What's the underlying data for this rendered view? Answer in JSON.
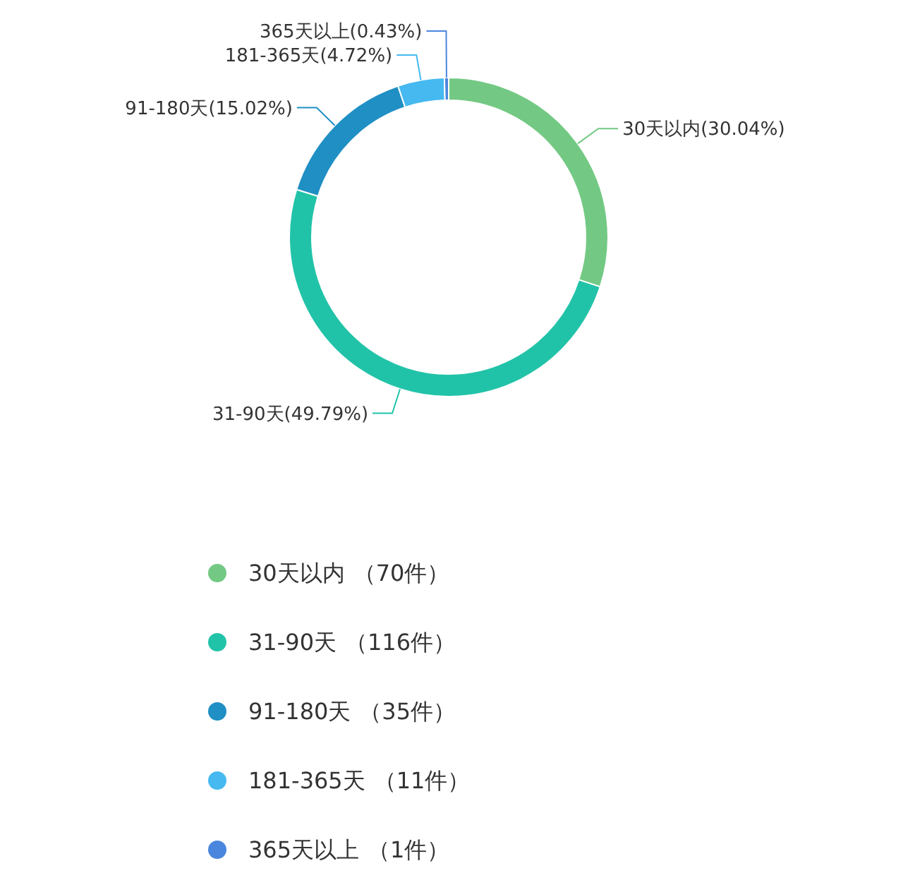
{
  "chart_data": {
    "type": "donut",
    "categories": [
      "30天以内",
      "31-90天",
      "91-180天",
      "181-365天",
      "365天以上"
    ],
    "values": [
      30.04,
      49.79,
      15.02,
      4.72,
      0.43
    ],
    "colors": [
      "#73c983",
      "#21c3a8",
      "#1f8fc4",
      "#45b9f0",
      "#4a86de"
    ],
    "value_labels": [
      "(30.04%)",
      "(49.79%)",
      "(15.02%)",
      "(4.72%)",
      "(0.43%)"
    ],
    "legend": "bottom",
    "annotations": [
      "（70件）",
      "（116件）",
      "（35件）",
      "（11件）",
      "（1件）"
    ]
  }
}
